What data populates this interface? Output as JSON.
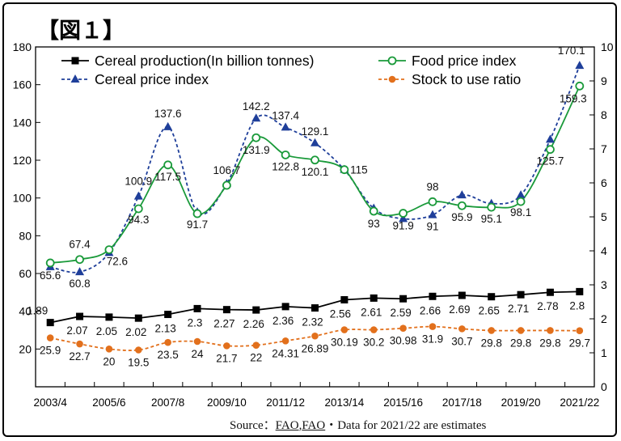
{
  "figure_label": "【図１】",
  "source": {
    "prefix": "Source：",
    "link1": "FAO",
    "sep": ",",
    "link2": "FAO",
    "suffix": "・Data for 2021/22 are estimates"
  },
  "chart_data": {
    "type": "line",
    "title": "",
    "x_labels": [
      "2003/4",
      "2005/6",
      "2007/8",
      "2009/10",
      "2011/12",
      "2013/14",
      "2015/16",
      "2017/18",
      "2019/20",
      "2021/22"
    ],
    "x_points": 19,
    "left_axis": {
      "min": 0,
      "max": 180,
      "ticks": [
        20,
        40,
        60,
        80,
        100,
        120,
        140,
        160,
        180
      ]
    },
    "right_axis": {
      "min": 0,
      "max": 10,
      "ticks": [
        0,
        1,
        2,
        3,
        4,
        5,
        6,
        7,
        8,
        9,
        10
      ]
    },
    "grid": false,
    "legend_position": "top",
    "series": [
      {
        "name": "Cereal production(In billion tonnes)",
        "axis": "right",
        "color": "#000000",
        "marker": "square",
        "style": "solid",
        "values": [
          1.89,
          2.07,
          2.05,
          2.02,
          2.13,
          2.3,
          2.27,
          2.26,
          2.36,
          2.32,
          2.56,
          2.61,
          2.59,
          2.66,
          2.69,
          2.65,
          2.71,
          2.78,
          2.8
        ],
        "labels": [
          "1.89",
          "2.07",
          "2.05",
          "2.02",
          "2.13",
          "2.3",
          "2.27",
          "2.26",
          "2.36",
          "2.32",
          "2.56",
          "2.61",
          "2.59",
          "2.66",
          "2.69",
          "2.65",
          "2.71",
          "2.78",
          "2.8"
        ]
      },
      {
        "name": "Food price index",
        "axis": "left",
        "color": "#1a9a3a",
        "marker": "circle",
        "style": "solid",
        "values": [
          65.6,
          67.4,
          72.6,
          94.3,
          117.5,
          91.7,
          106.7,
          131.9,
          122.8,
          120.1,
          115,
          93,
          91.9,
          98,
          95.9,
          95.1,
          98.1,
          125.7,
          159.3
        ],
        "labels": [
          "65.6",
          "67.4",
          "72.6",
          "94.3",
          "117.5",
          "91.7",
          "106.7",
          "131.9",
          "122.8",
          "120.1",
          "",
          "93",
          "91.9",
          "98",
          "95.9",
          "95.1",
          "98.1",
          "125.7",
          "159.3"
        ]
      },
      {
        "name": "Cereal price index",
        "axis": "left",
        "color": "#1f3f9a",
        "marker": "triangle",
        "style": "dashed",
        "values": [
          63.5,
          60.8,
          71,
          100.9,
          137.6,
          92.5,
          107.5,
          142.2,
          137.4,
          129.1,
          115,
          94.5,
          89,
          91,
          101.5,
          97,
          101.5,
          131,
          170.1
        ],
        "labels": [
          "",
          "60.8",
          "",
          "100.9",
          "137.6",
          "",
          "",
          "142.2",
          "137.4",
          "129.1",
          "115",
          "",
          "",
          "91",
          "",
          "",
          "",
          "",
          "170.1"
        ]
      },
      {
        "name": "Stock to use ratio",
        "axis": "left",
        "color": "#e2701c",
        "marker": "circle-filled",
        "style": "dashed",
        "values": [
          25.9,
          22.7,
          20,
          19.5,
          23.5,
          24,
          21.7,
          22,
          24.31,
          26.89,
          30.19,
          30.2,
          30.98,
          31.9,
          30.7,
          29.8,
          29.8,
          29.8,
          29.7
        ],
        "labels": [
          "25.9",
          "22.7",
          "20",
          "19.5",
          "23.5",
          "24",
          "21.7",
          "22",
          "24.31",
          "26.89",
          "30.19",
          "30.2",
          "30.98",
          "31.9",
          "30.7",
          "29.8",
          "29.8",
          "29.8",
          "29.7"
        ]
      }
    ]
  }
}
